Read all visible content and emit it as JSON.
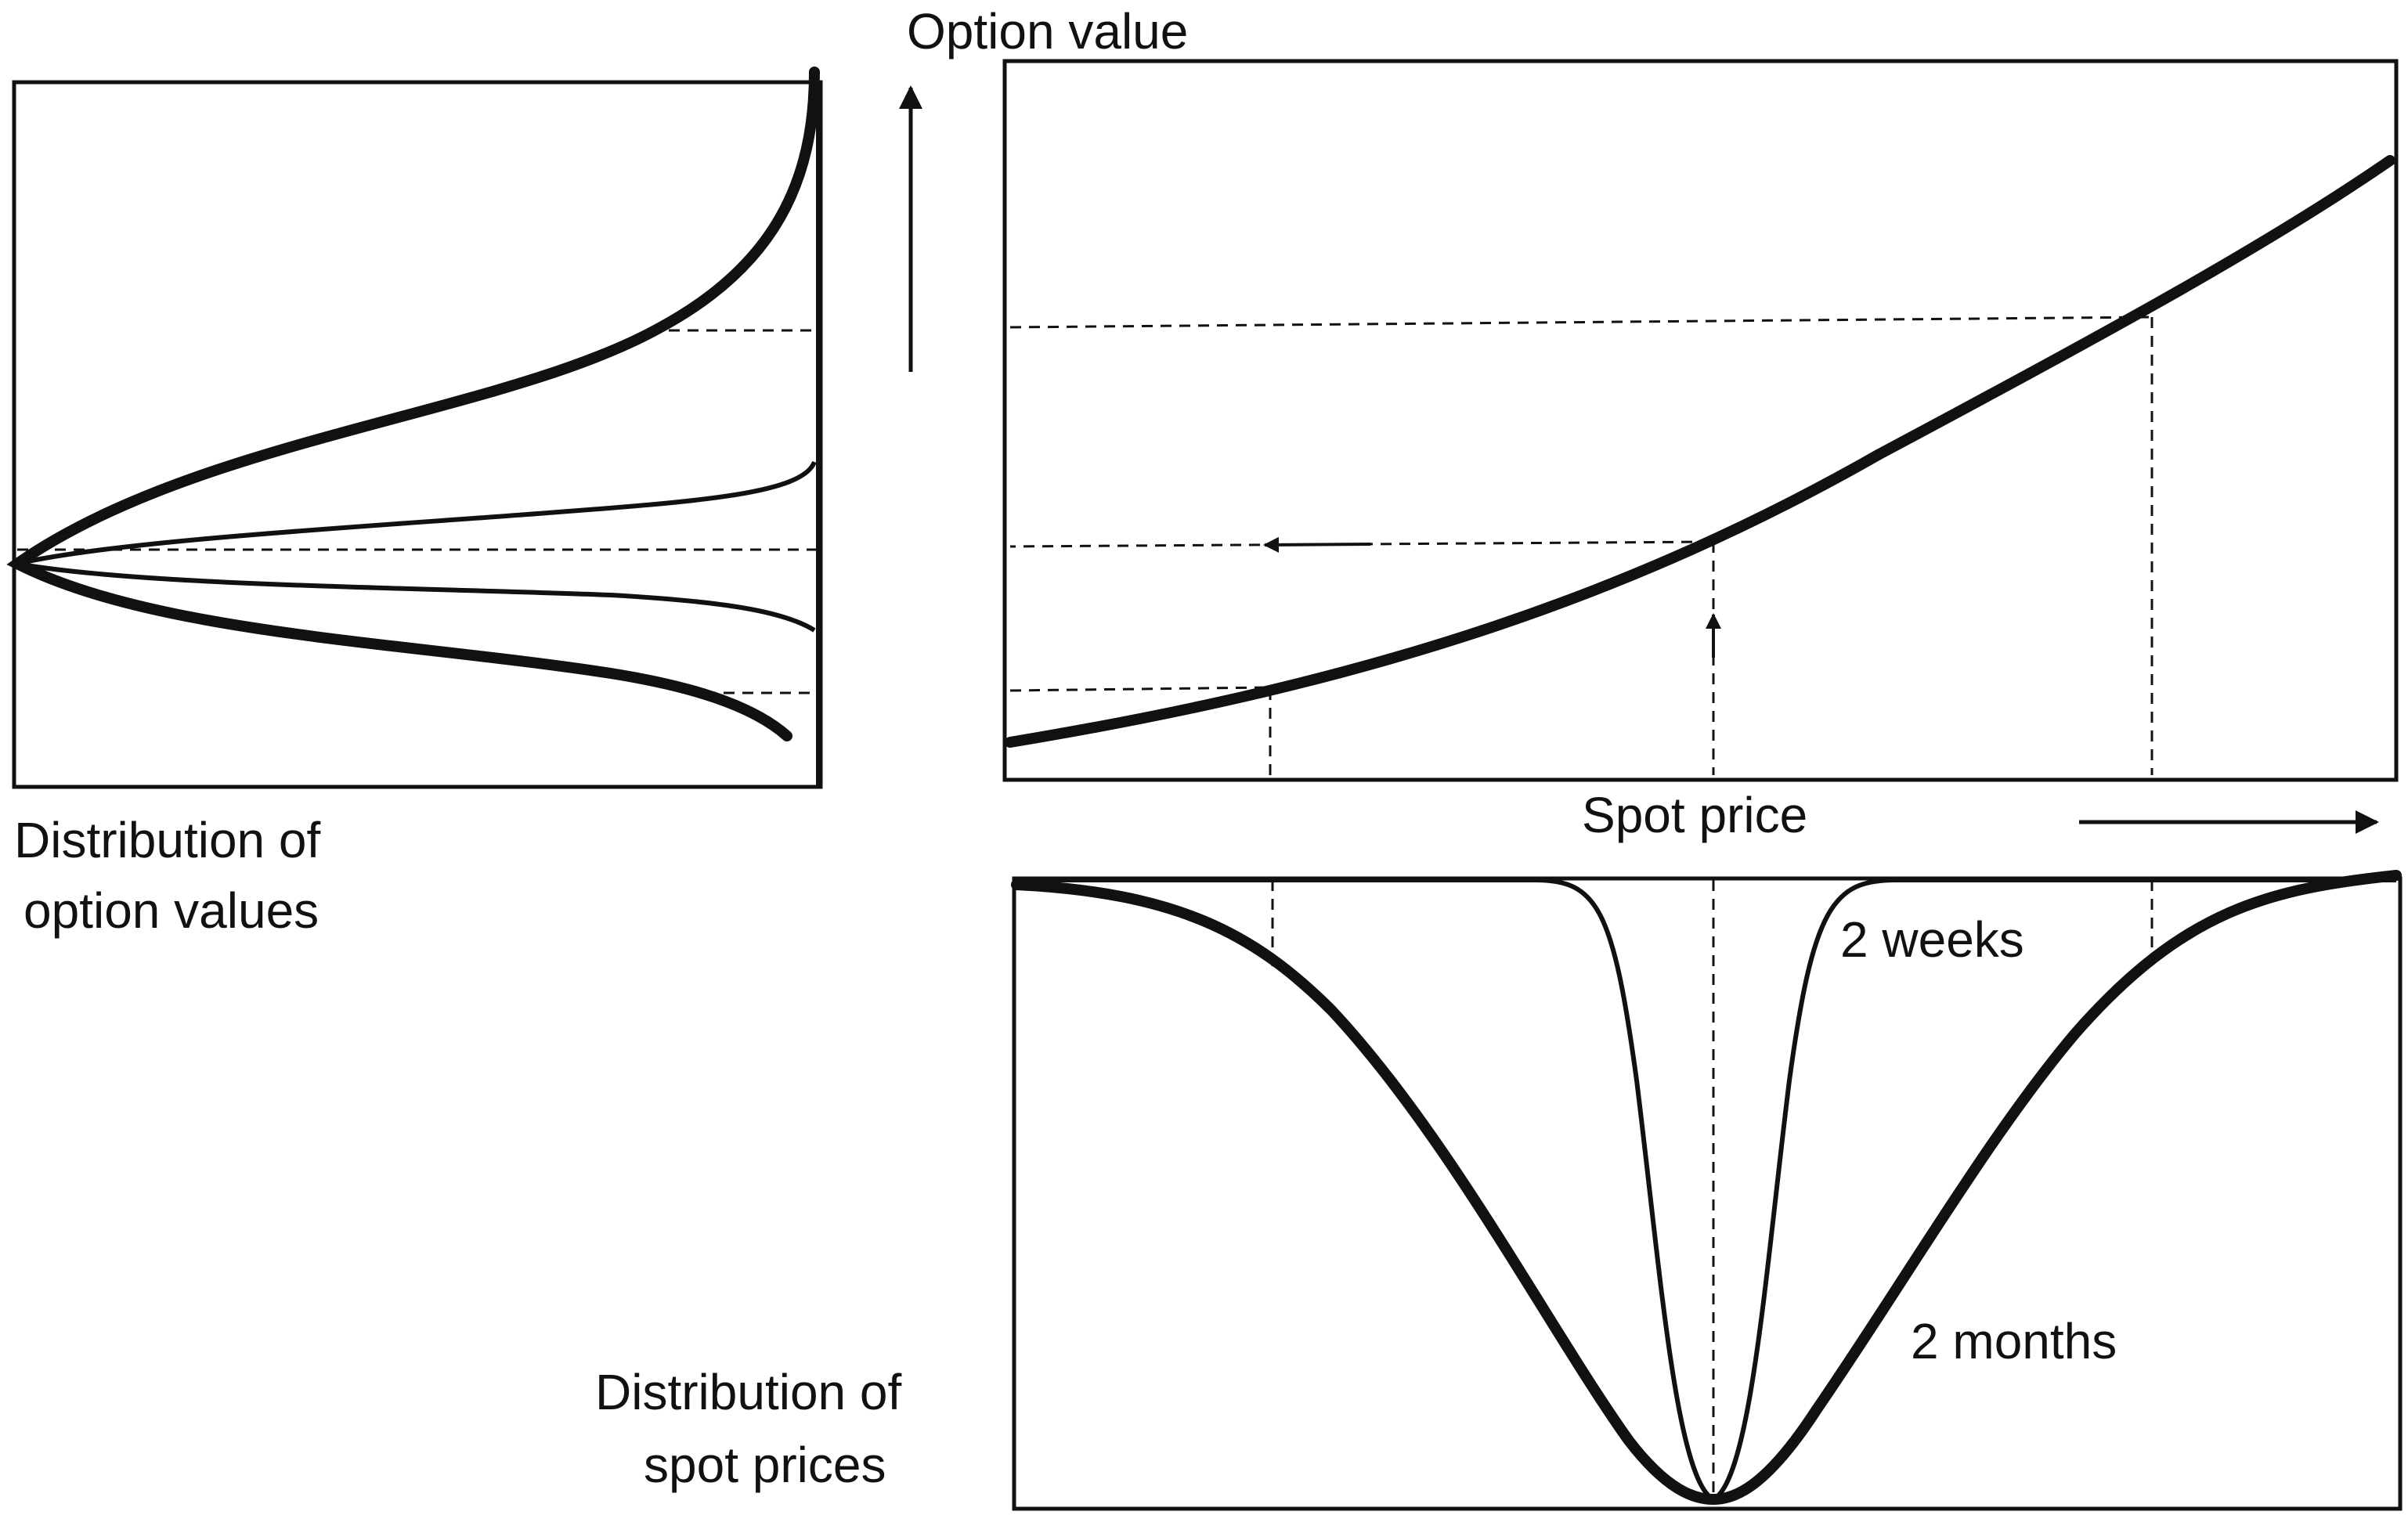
{
  "labels": {
    "option_value": "Option value",
    "spot_price": "Spot price",
    "distribution_option_values_line1": "Distribution of",
    "distribution_option_values_line2": "option values",
    "distribution_spot_prices_line1": "Distribution of",
    "distribution_spot_prices_line2": "spot prices",
    "two_weeks": "2 weeks",
    "two_months": "2 months"
  },
  "colors": {
    "ink": "#111111",
    "background": "#ffffff"
  }
}
